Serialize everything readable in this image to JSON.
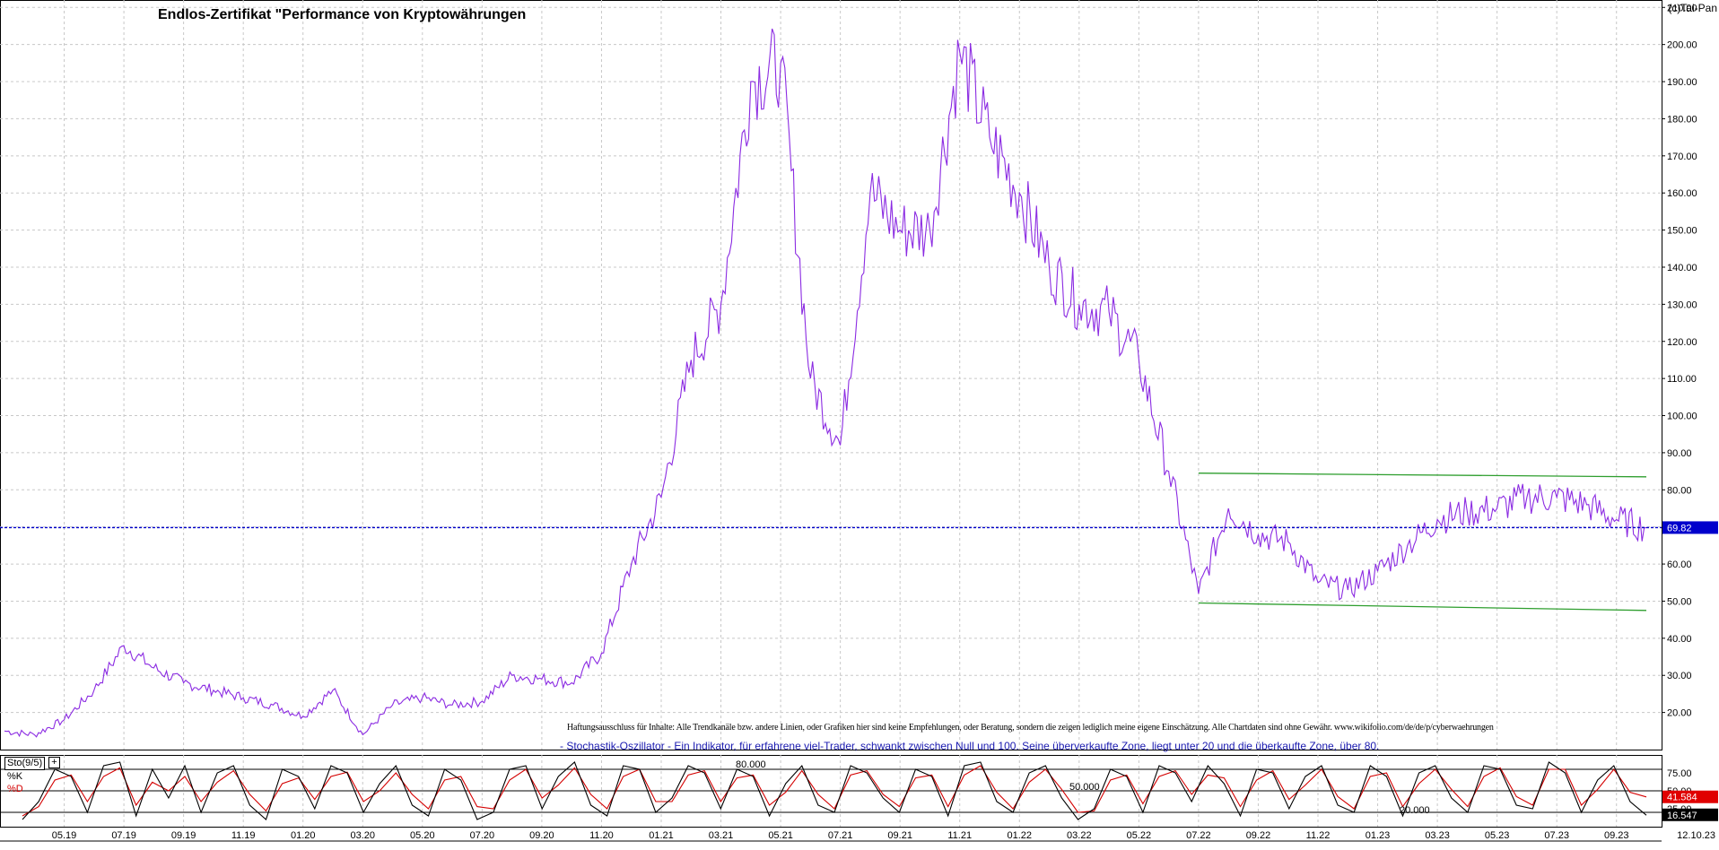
{
  "header": {
    "title": "Endlos-Zertifikat \"Performance von Kryptowährungen",
    "brand": "(c)Tai-Pan"
  },
  "footer": {
    "disclaimer": "Haftungsausschluss für Inhalte: Alle Trendkanäle bzw. andere Linien, oder Grafiken hier sind keine Empfehlungen, oder Beratung, sondern die zeigen lediglich meine eigene Einschätzung. Alle Chartdaten sind ohne Gewähr.  www.wikifolio.com/de/de/p/cyberwaehrungen",
    "stochastic_description": "- Stochastik-Oszillator - Ein Indikator, für erfahrene viel-Trader, schwankt zwischen Null und 100. Seine überverkaufte Zone, liegt unter 20 und die überkaufte Zone, über 80."
  },
  "indicator": {
    "name": "Sto(9/5)",
    "k_label": "%K",
    "d_label": "%D",
    "level_80": "80.000",
    "level_50": "50.000",
    "level_20": "20.000",
    "axis_ticks": [
      {
        "value": 75,
        "label": "75.00"
      },
      {
        "value": 50,
        "label": "50.00"
      },
      {
        "value": 25,
        "label": "25.00"
      }
    ],
    "current_d": "41.584",
    "current_k": "16.547",
    "colors": {
      "k": "#000000",
      "d": "#d40000",
      "d_tag": "#e00000",
      "k_tag": "#000000"
    }
  },
  "chart_data": [
    {
      "type": "line",
      "title": "Endlos-Zertifikat \"Performance von Kryptowährungen",
      "xlabel": "",
      "ylabel": "",
      "ylim": [
        10,
        212
      ],
      "y_ticks": [
        20,
        30,
        40,
        50,
        60,
        70,
        80,
        90,
        100,
        110,
        120,
        130,
        140,
        150,
        160,
        170,
        180,
        190,
        200,
        210
      ],
      "y_tick_labels": [
        "20.00",
        "30.00",
        "40.00",
        "50.00",
        "60.00",
        "70.00",
        "80.00",
        "90.00",
        "100.00",
        "110.00",
        "120.00",
        "130.00",
        "140.00",
        "150.00",
        "160.00",
        "170.00",
        "180.00",
        "190.00",
        "200.00",
        "210.00"
      ],
      "x_ticks": [
        "05.19",
        "07.19",
        "09.19",
        "11.19",
        "01.20",
        "03.20",
        "05.20",
        "07.20",
        "09.20",
        "11.20",
        "01.21",
        "03.21",
        "05.21",
        "07.21",
        "09.21",
        "11.21",
        "01.22",
        "03.22",
        "05.22",
        "07.22",
        "09.22",
        "11.22",
        "01.23",
        "03.23",
        "05.23",
        "07.23",
        "09.23"
      ],
      "last_date": "12.10.23",
      "grid": true,
      "line_color": "#8b2be2",
      "series": [
        {
          "x": [
            "03.19",
            "04.19",
            "05.19",
            "06.19",
            "07.19",
            "08.19",
            "09.19",
            "10.19",
            "11.19",
            "12.19",
            "01.20",
            "02.20",
            "03.20",
            "04.20",
            "05.20",
            "06.20",
            "07.20",
            "08.20",
            "09.20",
            "10.20",
            "11.20",
            "12.20",
            "01.21",
            "02.21",
            "03.21",
            "04.21",
            "05.21",
            "06.21",
            "07.21",
            "08.21",
            "09.21",
            "10.21",
            "11.21",
            "12.21",
            "01.22",
            "02.22",
            "03.22",
            "04.22",
            "05.22",
            "06.22",
            "07.22",
            "08.22",
            "09.22",
            "10.22",
            "11.22",
            "12.22",
            "01.23",
            "02.23",
            "03.23",
            "04.23",
            "05.23",
            "06.23",
            "07.23",
            "08.23",
            "09.23",
            "10.23"
          ],
          "values": [
            15,
            14,
            18,
            26,
            38,
            32,
            28,
            26,
            24,
            22,
            19,
            26,
            14,
            22,
            24,
            22,
            23,
            30,
            29,
            28,
            36,
            60,
            78,
            115,
            130,
            190,
            195,
            110,
            92,
            160,
            150,
            150,
            198,
            175,
            160,
            140,
            130,
            128,
            115,
            85,
            52,
            75,
            68,
            66,
            55,
            53,
            58,
            65,
            72,
            74,
            75,
            78,
            78,
            76,
            72,
            69.82
          ]
        }
      ],
      "current_value": "69.82",
      "current_value_color": "#0000cc",
      "trendlines": [
        {
          "color": "#2e9e2e",
          "points": [
            [
              "07.22",
              84.5
            ],
            [
              "10.23",
              83.5
            ]
          ]
        },
        {
          "color": "#2e9e2e",
          "points": [
            [
              "07.22",
              49.5
            ],
            [
              "10.23",
              47.5
            ]
          ]
        }
      ]
    },
    {
      "type": "line",
      "title": "",
      "ylim": [
        0,
        100
      ],
      "series": [
        {
          "name": "%K",
          "values": [
            10,
            35,
            80,
            70,
            20,
            85,
            90,
            15,
            80,
            40,
            85,
            20,
            75,
            85,
            30,
            10,
            80,
            70,
            25,
            85,
            75,
            20,
            60,
            85,
            30,
            15,
            80,
            65,
            10,
            20,
            80,
            85,
            25,
            70,
            90,
            30,
            15,
            85,
            80,
            20,
            40,
            85,
            75,
            25,
            80,
            70,
            15,
            60,
            85,
            30,
            20,
            85,
            75,
            40,
            20,
            80,
            70,
            15,
            85,
            90,
            35,
            20,
            75,
            85,
            40,
            10,
            25,
            80,
            70,
            20,
            85,
            75,
            35,
            85,
            60,
            15,
            80,
            75,
            25,
            70,
            85,
            30,
            20,
            85,
            70,
            15,
            75,
            85,
            40,
            20,
            85,
            80,
            30,
            25,
            90,
            75,
            20,
            65,
            85,
            35,
            16
          ]
        },
        {
          "name": "%D",
          "values": [
            15,
            28,
            65,
            72,
            35,
            70,
            82,
            30,
            62,
            50,
            70,
            35,
            62,
            78,
            45,
            22,
            60,
            68,
            38,
            70,
            76,
            35,
            50,
            75,
            45,
            25,
            65,
            70,
            28,
            25,
            65,
            80,
            40,
            58,
            82,
            45,
            25,
            70,
            80,
            35,
            35,
            72,
            78,
            35,
            68,
            72,
            30,
            48,
            78,
            45,
            25,
            72,
            78,
            45,
            28,
            68,
            72,
            28,
            72,
            85,
            48,
            25,
            62,
            80,
            52,
            20,
            22,
            65,
            72,
            32,
            70,
            78,
            45,
            72,
            68,
            28,
            65,
            78,
            38,
            58,
            80,
            42,
            25,
            70,
            75,
            28,
            60,
            80,
            52,
            28,
            70,
            82,
            42,
            30,
            80,
            80,
            30,
            52,
            80,
            48,
            41.5
          ]
        }
      ]
    }
  ]
}
